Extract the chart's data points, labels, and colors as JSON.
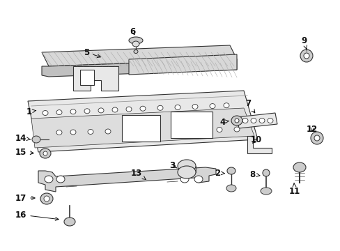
{
  "bg_color": "#ffffff",
  "gray": "#333333",
  "lgray": "#999999",
  "fill_light": "#e8e8e8",
  "fill_hatch": "#d0d0d0"
}
